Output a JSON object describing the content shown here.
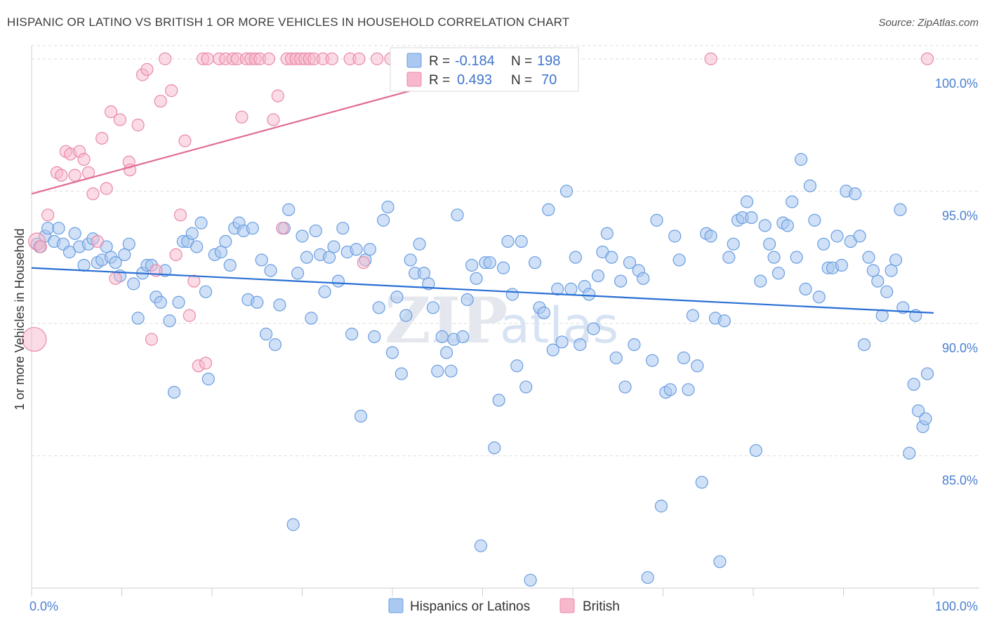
{
  "title": "HISPANIC OR LATINO VS BRITISH 1 OR MORE VEHICLES IN HOUSEHOLD CORRELATION CHART",
  "source": "Source: ZipAtlas.com",
  "watermark": {
    "part1": "ZIP",
    "part2": "atlas"
  },
  "legend": {
    "r_label": "R =",
    "n_label": "N =",
    "entries": [
      {
        "r": "-0.184",
        "n": "198",
        "fill": "#aac8f0",
        "stroke": "#6a9de0"
      },
      {
        "r": "0.493",
        "n": "70",
        "fill": "#f8b8cc",
        "stroke": "#e98aa8"
      }
    ]
  },
  "bottom_legend": [
    "Hispanics or Latinos",
    "British"
  ],
  "chart_data": {
    "type": "scatter",
    "title": "HISPANIC OR LATINO VS BRITISH 1 OR MORE VEHICLES IN HOUSEHOLD CORRELATION CHART",
    "xlabel": "",
    "ylabel": "1 or more Vehicles in Household",
    "xlim": [
      0,
      100
    ],
    "ylim": [
      80,
      100.5
    ],
    "x_tick_labels": [
      "0.0%",
      "100.0%"
    ],
    "y_tick_labels": [
      "100.0%",
      "95.0%",
      "90.0%",
      "85.0%"
    ],
    "y_ticks": [
      100,
      95,
      90,
      85
    ],
    "grid": true,
    "series": [
      {
        "name": "Hispanics or Latinos",
        "color": "#6a9de0",
        "fill": "#aac8f0",
        "trend": {
          "x": [
            0,
            100
          ],
          "y": [
            92.1,
            90.4
          ],
          "color": "#2a6fd4"
        },
        "points": [
          [
            0.6,
            93.0
          ],
          [
            0.9,
            92.9
          ],
          [
            1.5,
            93.3
          ],
          [
            1.8,
            93.6
          ],
          [
            2.5,
            93.1
          ],
          [
            3.0,
            93.6
          ],
          [
            3.5,
            93.0
          ],
          [
            4.2,
            92.7
          ],
          [
            4.8,
            93.4
          ],
          [
            5.3,
            92.9
          ],
          [
            5.8,
            92.2
          ],
          [
            6.3,
            93.0
          ],
          [
            6.8,
            93.2
          ],
          [
            7.3,
            92.3
          ],
          [
            7.8,
            92.4
          ],
          [
            8.3,
            92.9
          ],
          [
            8.8,
            92.5
          ],
          [
            9.3,
            92.3
          ],
          [
            9.8,
            91.8
          ],
          [
            10.3,
            92.6
          ],
          [
            10.8,
            93.0
          ],
          [
            11.3,
            91.5
          ],
          [
            11.8,
            90.2
          ],
          [
            12.3,
            91.9
          ],
          [
            12.8,
            92.2
          ],
          [
            13.3,
            92.2
          ],
          [
            13.8,
            91.0
          ],
          [
            14.3,
            90.8
          ],
          [
            14.8,
            92.0
          ],
          [
            15.3,
            90.1
          ],
          [
            15.8,
            87.4
          ],
          [
            16.3,
            90.8
          ],
          [
            16.8,
            93.1
          ],
          [
            17.3,
            93.1
          ],
          [
            17.8,
            93.4
          ],
          [
            18.3,
            92.9
          ],
          [
            18.8,
            93.8
          ],
          [
            19.3,
            91.2
          ],
          [
            19.6,
            87.9
          ],
          [
            20.3,
            92.6
          ],
          [
            21.0,
            92.7
          ],
          [
            21.5,
            93.1
          ],
          [
            22.0,
            92.2
          ],
          [
            22.5,
            93.6
          ],
          [
            23.0,
            93.8
          ],
          [
            23.5,
            93.5
          ],
          [
            24.0,
            90.9
          ],
          [
            24.5,
            93.6
          ],
          [
            25.0,
            90.8
          ],
          [
            25.5,
            92.4
          ],
          [
            26.0,
            89.6
          ],
          [
            26.5,
            92.0
          ],
          [
            27.0,
            89.2
          ],
          [
            27.5,
            90.7
          ],
          [
            28.0,
            93.6
          ],
          [
            28.5,
            94.3
          ],
          [
            29.0,
            82.4
          ],
          [
            29.5,
            91.9
          ],
          [
            30.0,
            93.3
          ],
          [
            30.5,
            92.5
          ],
          [
            31.0,
            90.2
          ],
          [
            31.5,
            93.5
          ],
          [
            32.0,
            92.6
          ],
          [
            32.5,
            91.2
          ],
          [
            33.0,
            92.5
          ],
          [
            33.5,
            92.9
          ],
          [
            34.0,
            91.6
          ],
          [
            34.5,
            93.6
          ],
          [
            35.0,
            92.7
          ],
          [
            35.5,
            89.6
          ],
          [
            36.0,
            92.8
          ],
          [
            36.5,
            86.5
          ],
          [
            37.0,
            92.4
          ],
          [
            37.5,
            92.8
          ],
          [
            38.0,
            89.5
          ],
          [
            38.5,
            90.6
          ],
          [
            39.0,
            93.9
          ],
          [
            39.5,
            94.4
          ],
          [
            40.0,
            88.9
          ],
          [
            40.5,
            91.0
          ],
          [
            41.0,
            88.1
          ],
          [
            41.5,
            90.3
          ],
          [
            42.0,
            92.4
          ],
          [
            42.5,
            91.9
          ],
          [
            43.0,
            93.0
          ],
          [
            43.5,
            91.9
          ],
          [
            44.0,
            91.5
          ],
          [
            44.5,
            90.6
          ],
          [
            45.0,
            88.2
          ],
          [
            45.5,
            89.5
          ],
          [
            46.0,
            88.9
          ],
          [
            46.5,
            88.2
          ],
          [
            46.8,
            89.4
          ],
          [
            47.2,
            94.1
          ],
          [
            47.8,
            89.5
          ],
          [
            48.3,
            90.9
          ],
          [
            48.8,
            92.2
          ],
          [
            49.3,
            91.7
          ],
          [
            49.8,
            81.6
          ],
          [
            50.3,
            92.3
          ],
          [
            50.8,
            92.3
          ],
          [
            51.3,
            85.3
          ],
          [
            51.8,
            87.1
          ],
          [
            52.3,
            92.1
          ],
          [
            52.8,
            93.1
          ],
          [
            53.3,
            91.1
          ],
          [
            53.8,
            88.4
          ],
          [
            54.3,
            93.1
          ],
          [
            54.8,
            87.6
          ],
          [
            55.3,
            80.3
          ],
          [
            55.8,
            92.3
          ],
          [
            56.3,
            90.6
          ],
          [
            56.8,
            90.4
          ],
          [
            57.3,
            94.3
          ],
          [
            57.8,
            89.0
          ],
          [
            58.3,
            91.3
          ],
          [
            58.8,
            89.3
          ],
          [
            59.3,
            95.0
          ],
          [
            59.8,
            91.3
          ],
          [
            60.3,
            92.5
          ],
          [
            60.8,
            89.2
          ],
          [
            61.3,
            91.4
          ],
          [
            61.8,
            91.1
          ],
          [
            62.3,
            89.8
          ],
          [
            62.8,
            91.8
          ],
          [
            63.3,
            92.7
          ],
          [
            63.8,
            93.4
          ],
          [
            64.3,
            92.5
          ],
          [
            64.8,
            88.7
          ],
          [
            65.3,
            91.6
          ],
          [
            65.8,
            87.6
          ],
          [
            66.3,
            92.3
          ],
          [
            66.8,
            89.2
          ],
          [
            67.3,
            92.0
          ],
          [
            67.8,
            91.7
          ],
          [
            68.3,
            80.4
          ],
          [
            68.8,
            88.6
          ],
          [
            69.3,
            93.9
          ],
          [
            69.8,
            83.1
          ],
          [
            70.3,
            87.4
          ],
          [
            70.8,
            87.5
          ],
          [
            71.3,
            93.3
          ],
          [
            71.8,
            92.4
          ],
          [
            72.3,
            88.7
          ],
          [
            72.8,
            87.5
          ],
          [
            73.3,
            90.3
          ],
          [
            73.8,
            88.4
          ],
          [
            74.3,
            84.0
          ],
          [
            74.8,
            93.4
          ],
          [
            75.3,
            93.3
          ],
          [
            75.8,
            90.2
          ],
          [
            76.3,
            81.0
          ],
          [
            76.8,
            90.1
          ],
          [
            77.3,
            92.5
          ],
          [
            77.8,
            93.0
          ],
          [
            78.3,
            93.9
          ],
          [
            78.8,
            94.0
          ],
          [
            79.3,
            94.6
          ],
          [
            79.8,
            94.0
          ],
          [
            80.3,
            85.2
          ],
          [
            80.8,
            91.6
          ],
          [
            81.3,
            93.7
          ],
          [
            81.8,
            93.0
          ],
          [
            82.3,
            92.5
          ],
          [
            82.8,
            91.9
          ],
          [
            83.3,
            93.8
          ],
          [
            83.8,
            93.7
          ],
          [
            84.3,
            94.6
          ],
          [
            84.8,
            92.5
          ],
          [
            85.3,
            96.2
          ],
          [
            85.8,
            91.3
          ],
          [
            86.3,
            95.2
          ],
          [
            86.8,
            93.9
          ],
          [
            87.3,
            91.0
          ],
          [
            87.8,
            93.0
          ],
          [
            88.3,
            92.1
          ],
          [
            88.8,
            92.1
          ],
          [
            89.3,
            93.3
          ],
          [
            89.8,
            92.2
          ],
          [
            90.3,
            95.0
          ],
          [
            90.8,
            93.1
          ],
          [
            91.3,
            94.9
          ],
          [
            91.8,
            93.3
          ],
          [
            92.3,
            89.2
          ],
          [
            92.8,
            92.5
          ],
          [
            93.3,
            92.0
          ],
          [
            93.8,
            91.6
          ],
          [
            94.3,
            90.3
          ],
          [
            94.8,
            91.2
          ],
          [
            95.3,
            92.0
          ],
          [
            95.8,
            92.4
          ],
          [
            96.3,
            94.3
          ],
          [
            96.6,
            90.6
          ],
          [
            97.3,
            85.1
          ],
          [
            97.8,
            87.7
          ],
          [
            98.3,
            86.7
          ],
          [
            98.8,
            86.1
          ],
          [
            99.1,
            86.4
          ],
          [
            99.3,
            88.1
          ],
          [
            98.0,
            90.3
          ]
        ]
      },
      {
        "name": "British",
        "color": "#e98aa8",
        "fill": "#f8b8cc",
        "trend": {
          "x": [
            0,
            55
          ],
          "y": [
            94.9,
            100.0
          ],
          "color": "#e06b94"
        },
        "points": [
          [
            0.3,
            89.4
          ],
          [
            0.6,
            93.1
          ],
          [
            1.0,
            92.9
          ],
          [
            1.8,
            94.1
          ],
          [
            2.8,
            95.7
          ],
          [
            3.3,
            95.6
          ],
          [
            3.8,
            96.5
          ],
          [
            4.3,
            96.4
          ],
          [
            4.8,
            95.6
          ],
          [
            5.3,
            96.5
          ],
          [
            5.8,
            96.2
          ],
          [
            6.3,
            95.7
          ],
          [
            6.8,
            94.9
          ],
          [
            7.3,
            93.1
          ],
          [
            7.8,
            97.0
          ],
          [
            8.3,
            95.1
          ],
          [
            8.8,
            98.0
          ],
          [
            9.3,
            91.7
          ],
          [
            9.8,
            97.7
          ],
          [
            10.8,
            96.1
          ],
          [
            10.9,
            95.8
          ],
          [
            11.8,
            97.5
          ],
          [
            12.3,
            99.4
          ],
          [
            12.8,
            99.6
          ],
          [
            13.3,
            89.4
          ],
          [
            13.8,
            92.0
          ],
          [
            14.3,
            98.4
          ],
          [
            14.8,
            100.0
          ],
          [
            15.5,
            98.8
          ],
          [
            16.0,
            92.6
          ],
          [
            16.5,
            94.1
          ],
          [
            17.0,
            96.9
          ],
          [
            17.5,
            90.3
          ],
          [
            18.0,
            91.6
          ],
          [
            18.5,
            88.4
          ],
          [
            19.0,
            100.0
          ],
          [
            19.3,
            88.5
          ],
          [
            19.5,
            100.0
          ],
          [
            20.8,
            100.0
          ],
          [
            21.5,
            100.0
          ],
          [
            22.3,
            100.0
          ],
          [
            22.8,
            100.0
          ],
          [
            23.3,
            97.8
          ],
          [
            23.8,
            100.0
          ],
          [
            24.3,
            100.0
          ],
          [
            24.8,
            100.0
          ],
          [
            25.3,
            100.0
          ],
          [
            26.3,
            100.0
          ],
          [
            26.8,
            97.7
          ],
          [
            27.3,
            98.6
          ],
          [
            27.8,
            93.6
          ],
          [
            28.3,
            100.0
          ],
          [
            28.8,
            100.0
          ],
          [
            29.3,
            100.0
          ],
          [
            29.8,
            100.0
          ],
          [
            30.3,
            100.0
          ],
          [
            30.8,
            100.0
          ],
          [
            31.3,
            100.0
          ],
          [
            32.3,
            100.0
          ],
          [
            33.3,
            100.0
          ],
          [
            35.3,
            100.0
          ],
          [
            36.3,
            100.0
          ],
          [
            36.8,
            92.3
          ],
          [
            38.3,
            100.0
          ],
          [
            39.8,
            100.0
          ],
          [
            41.3,
            100.0
          ],
          [
            44.3,
            100.0
          ],
          [
            47.8,
            100.0
          ],
          [
            75.3,
            100.0
          ],
          [
            99.3,
            100.0
          ]
        ]
      }
    ]
  }
}
